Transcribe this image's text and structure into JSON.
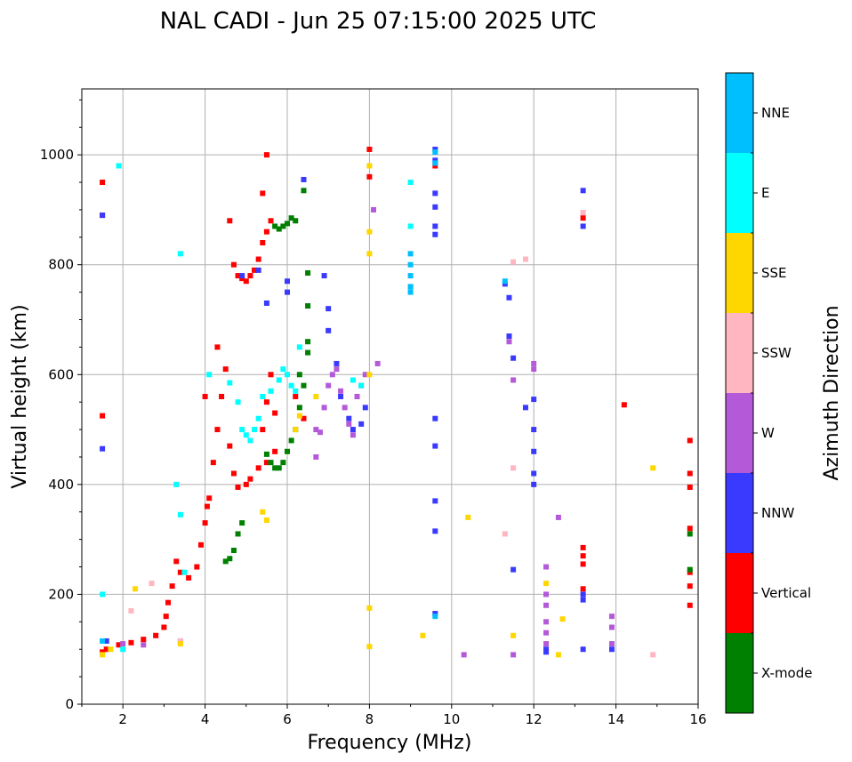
{
  "chart_data": {
    "type": "scatter",
    "title": "NAL CADI - Jun 25 07:15:00 2025 UTC",
    "xlabel": "Frequency (MHz)",
    "ylabel": "Virtual height (km)",
    "xlim": [
      1,
      16
    ],
    "ylim": [
      0,
      1120
    ],
    "xticks": [
      2,
      4,
      6,
      8,
      10,
      12,
      14,
      16
    ],
    "yticks": [
      0,
      200,
      400,
      600,
      800,
      1000
    ],
    "grid": true,
    "colorbar": {
      "label": "Azimuth Direction",
      "categories": [
        {
          "name": "X-mode",
          "color": "#008000"
        },
        {
          "name": "Vertical",
          "color": "#ff0000"
        },
        {
          "name": "NNW",
          "color": "#3a3aff"
        },
        {
          "name": "W",
          "color": "#b45ad8"
        },
        {
          "name": "SSW",
          "color": "#ffb6c1"
        },
        {
          "name": "SSE",
          "color": "#ffd700"
        },
        {
          "name": "E",
          "color": "#00ffff"
        },
        {
          "name": "NNE",
          "color": "#00bfff"
        }
      ]
    },
    "series": [
      {
        "name": "Vertical",
        "points": [
          [
            1.5,
            95
          ],
          [
            1.6,
            100
          ],
          [
            1.9,
            108
          ],
          [
            2.2,
            112
          ],
          [
            2.5,
            118
          ],
          [
            2.8,
            125
          ],
          [
            3.0,
            140
          ],
          [
            3.05,
            160
          ],
          [
            3.1,
            185
          ],
          [
            3.2,
            215
          ],
          [
            3.3,
            260
          ],
          [
            3.4,
            240
          ],
          [
            3.6,
            230
          ],
          [
            3.8,
            250
          ],
          [
            3.9,
            290
          ],
          [
            4.0,
            330
          ],
          [
            4.05,
            360
          ],
          [
            4.1,
            375
          ],
          [
            4.2,
            440
          ],
          [
            4.3,
            500
          ],
          [
            4.4,
            560
          ],
          [
            4.5,
            610
          ],
          [
            4.6,
            470
          ],
          [
            4.7,
            420
          ],
          [
            4.8,
            395
          ],
          [
            5.0,
            400
          ],
          [
            5.1,
            410
          ],
          [
            5.3,
            430
          ],
          [
            5.5,
            440
          ],
          [
            5.4,
            500
          ],
          [
            5.5,
            550
          ],
          [
            5.6,
            600
          ],
          [
            5.7,
            460
          ],
          [
            4.6,
            880
          ],
          [
            4.7,
            800
          ],
          [
            4.8,
            780
          ],
          [
            4.9,
            775
          ],
          [
            5.0,
            770
          ],
          [
            5.1,
            780
          ],
          [
            5.2,
            790
          ],
          [
            5.3,
            810
          ],
          [
            5.4,
            840
          ],
          [
            5.5,
            860
          ],
          [
            5.6,
            880
          ],
          [
            5.4,
            930
          ],
          [
            5.5,
            1000
          ],
          [
            1.5,
            950
          ],
          [
            1.5,
            890
          ],
          [
            1.5,
            525
          ],
          [
            8.0,
            1010
          ],
          [
            8.0,
            960
          ],
          [
            9.6,
            980
          ],
          [
            13.2,
            885
          ],
          [
            14.2,
            545
          ],
          [
            15.8,
            480
          ],
          [
            15.8,
            420
          ],
          [
            15.8,
            395
          ],
          [
            15.8,
            320
          ],
          [
            15.8,
            240
          ],
          [
            15.8,
            215
          ],
          [
            15.8,
            180
          ],
          [
            13.2,
            285
          ],
          [
            13.2,
            270
          ],
          [
            13.2,
            255
          ],
          [
            13.2,
            210
          ],
          [
            4.0,
            560
          ],
          [
            4.3,
            650
          ],
          [
            5.7,
            530
          ],
          [
            6.2,
            560
          ],
          [
            6.4,
            520
          ]
        ]
      },
      {
        "name": "X-mode",
        "points": [
          [
            4.5,
            260
          ],
          [
            4.6,
            265
          ],
          [
            4.7,
            280
          ],
          [
            4.8,
            310
          ],
          [
            4.9,
            330
          ],
          [
            5.5,
            455
          ],
          [
            5.6,
            440
          ],
          [
            5.7,
            430
          ],
          [
            5.8,
            430
          ],
          [
            5.9,
            440
          ],
          [
            6.0,
            460
          ],
          [
            6.1,
            480
          ],
          [
            6.2,
            500
          ],
          [
            6.3,
            540
          ],
          [
            6.4,
            580
          ],
          [
            6.5,
            640
          ],
          [
            6.5,
            725
          ],
          [
            6.5,
            785
          ],
          [
            6.4,
            935
          ],
          [
            5.7,
            870
          ],
          [
            5.8,
            865
          ],
          [
            5.9,
            870
          ],
          [
            6.0,
            875
          ],
          [
            6.1,
            885
          ],
          [
            6.2,
            880
          ],
          [
            6.3,
            600
          ],
          [
            6.5,
            660
          ],
          [
            15.8,
            310
          ],
          [
            15.8,
            245
          ]
        ]
      },
      {
        "name": "NNW",
        "points": [
          [
            1.5,
            890
          ],
          [
            1.5,
            465
          ],
          [
            1.6,
            115
          ],
          [
            3.4,
            115
          ],
          [
            4.9,
            780
          ],
          [
            5.3,
            790
          ],
          [
            5.5,
            730
          ],
          [
            6.0,
            770
          ],
          [
            6.0,
            750
          ],
          [
            6.4,
            955
          ],
          [
            6.9,
            780
          ],
          [
            7.0,
            720
          ],
          [
            7.0,
            680
          ],
          [
            7.2,
            620
          ],
          [
            7.3,
            560
          ],
          [
            7.5,
            520
          ],
          [
            7.6,
            500
          ],
          [
            7.8,
            510
          ],
          [
            7.9,
            540
          ],
          [
            9.6,
            1010
          ],
          [
            9.6,
            990
          ],
          [
            9.6,
            930
          ],
          [
            9.6,
            905
          ],
          [
            9.6,
            870
          ],
          [
            9.6,
            855
          ],
          [
            9.6,
            520
          ],
          [
            9.6,
            470
          ],
          [
            9.6,
            370
          ],
          [
            9.6,
            315
          ],
          [
            9.6,
            165
          ],
          [
            11.3,
            765
          ],
          [
            11.4,
            740
          ],
          [
            11.4,
            670
          ],
          [
            11.5,
            630
          ],
          [
            11.8,
            540
          ],
          [
            12.0,
            555
          ],
          [
            12.0,
            500
          ],
          [
            12.0,
            460
          ],
          [
            12.0,
            420
          ],
          [
            12.0,
            400
          ],
          [
            11.5,
            245
          ],
          [
            12.3,
            100
          ],
          [
            12.3,
            95
          ],
          [
            13.2,
            935
          ],
          [
            13.2,
            870
          ],
          [
            13.2,
            200
          ],
          [
            13.2,
            190
          ],
          [
            13.2,
            100
          ],
          [
            13.9,
            100
          ]
        ]
      },
      {
        "name": "W",
        "points": [
          [
            2.0,
            110
          ],
          [
            2.5,
            108
          ],
          [
            6.7,
            500
          ],
          [
            6.8,
            495
          ],
          [
            6.9,
            540
          ],
          [
            7.0,
            580
          ],
          [
            7.1,
            600
          ],
          [
            7.2,
            610
          ],
          [
            7.3,
            570
          ],
          [
            7.4,
            540
          ],
          [
            7.5,
            510
          ],
          [
            7.6,
            490
          ],
          [
            7.7,
            560
          ],
          [
            7.8,
            580
          ],
          [
            7.9,
            600
          ],
          [
            8.1,
            900
          ],
          [
            8.2,
            620
          ],
          [
            11.4,
            660
          ],
          [
            12.0,
            620
          ],
          [
            12.0,
            610
          ],
          [
            12.3,
            250
          ],
          [
            12.3,
            200
          ],
          [
            12.3,
            180
          ],
          [
            12.3,
            150
          ],
          [
            12.3,
            130
          ],
          [
            12.3,
            110
          ],
          [
            12.6,
            340
          ],
          [
            13.9,
            160
          ],
          [
            13.9,
            140
          ],
          [
            13.9,
            110
          ],
          [
            10.3,
            90
          ],
          [
            11.5,
            590
          ],
          [
            11.5,
            90
          ],
          [
            6.7,
            450
          ]
        ]
      },
      {
        "name": "SSW",
        "points": [
          [
            2.2,
            170
          ],
          [
            2.7,
            220
          ],
          [
            3.4,
            115
          ],
          [
            11.5,
            805
          ],
          [
            11.8,
            810
          ],
          [
            11.5,
            430
          ],
          [
            11.3,
            310
          ],
          [
            13.2,
            895
          ],
          [
            14.9,
            90
          ]
        ]
      },
      {
        "name": "SSE",
        "points": [
          [
            1.5,
            90
          ],
          [
            1.7,
            100
          ],
          [
            2.3,
            210
          ],
          [
            3.4,
            110
          ],
          [
            5.4,
            350
          ],
          [
            5.5,
            335
          ],
          [
            6.2,
            500
          ],
          [
            6.3,
            525
          ],
          [
            6.7,
            560
          ],
          [
            8.0,
            980
          ],
          [
            8.0,
            860
          ],
          [
            8.0,
            820
          ],
          [
            8.0,
            600
          ],
          [
            8.0,
            175
          ],
          [
            8.0,
            105
          ],
          [
            9.3,
            125
          ],
          [
            10.4,
            340
          ],
          [
            11.5,
            125
          ],
          [
            12.3,
            220
          ],
          [
            12.6,
            90
          ],
          [
            12.7,
            155
          ],
          [
            14.9,
            430
          ]
        ]
      },
      {
        "name": "E",
        "points": [
          [
            1.9,
            980
          ],
          [
            3.4,
            820
          ],
          [
            3.3,
            400
          ],
          [
            3.4,
            345
          ],
          [
            3.5,
            240
          ],
          [
            4.1,
            600
          ],
          [
            4.6,
            585
          ],
          [
            4.8,
            550
          ],
          [
            4.9,
            500
          ],
          [
            5.0,
            490
          ],
          [
            5.1,
            480
          ],
          [
            5.2,
            500
          ],
          [
            5.3,
            520
          ],
          [
            5.4,
            560
          ],
          [
            5.6,
            570
          ],
          [
            5.8,
            590
          ],
          [
            5.9,
            610
          ],
          [
            6.0,
            600
          ],
          [
            6.1,
            580
          ],
          [
            6.2,
            570
          ],
          [
            6.3,
            650
          ],
          [
            7.6,
            590
          ],
          [
            7.8,
            580
          ],
          [
            9.0,
            950
          ],
          [
            9.0,
            870
          ],
          [
            9.0,
            760
          ],
          [
            2.0,
            100
          ],
          [
            1.5,
            200
          ]
        ]
      },
      {
        "name": "NNE",
        "points": [
          [
            1.5,
            115
          ],
          [
            9.0,
            820
          ],
          [
            9.0,
            800
          ],
          [
            9.0,
            780
          ],
          [
            9.0,
            760
          ],
          [
            9.0,
            750
          ],
          [
            9.6,
            1005
          ],
          [
            9.6,
            985
          ],
          [
            9.6,
            160
          ],
          [
            11.3,
            770
          ]
        ]
      }
    ]
  }
}
